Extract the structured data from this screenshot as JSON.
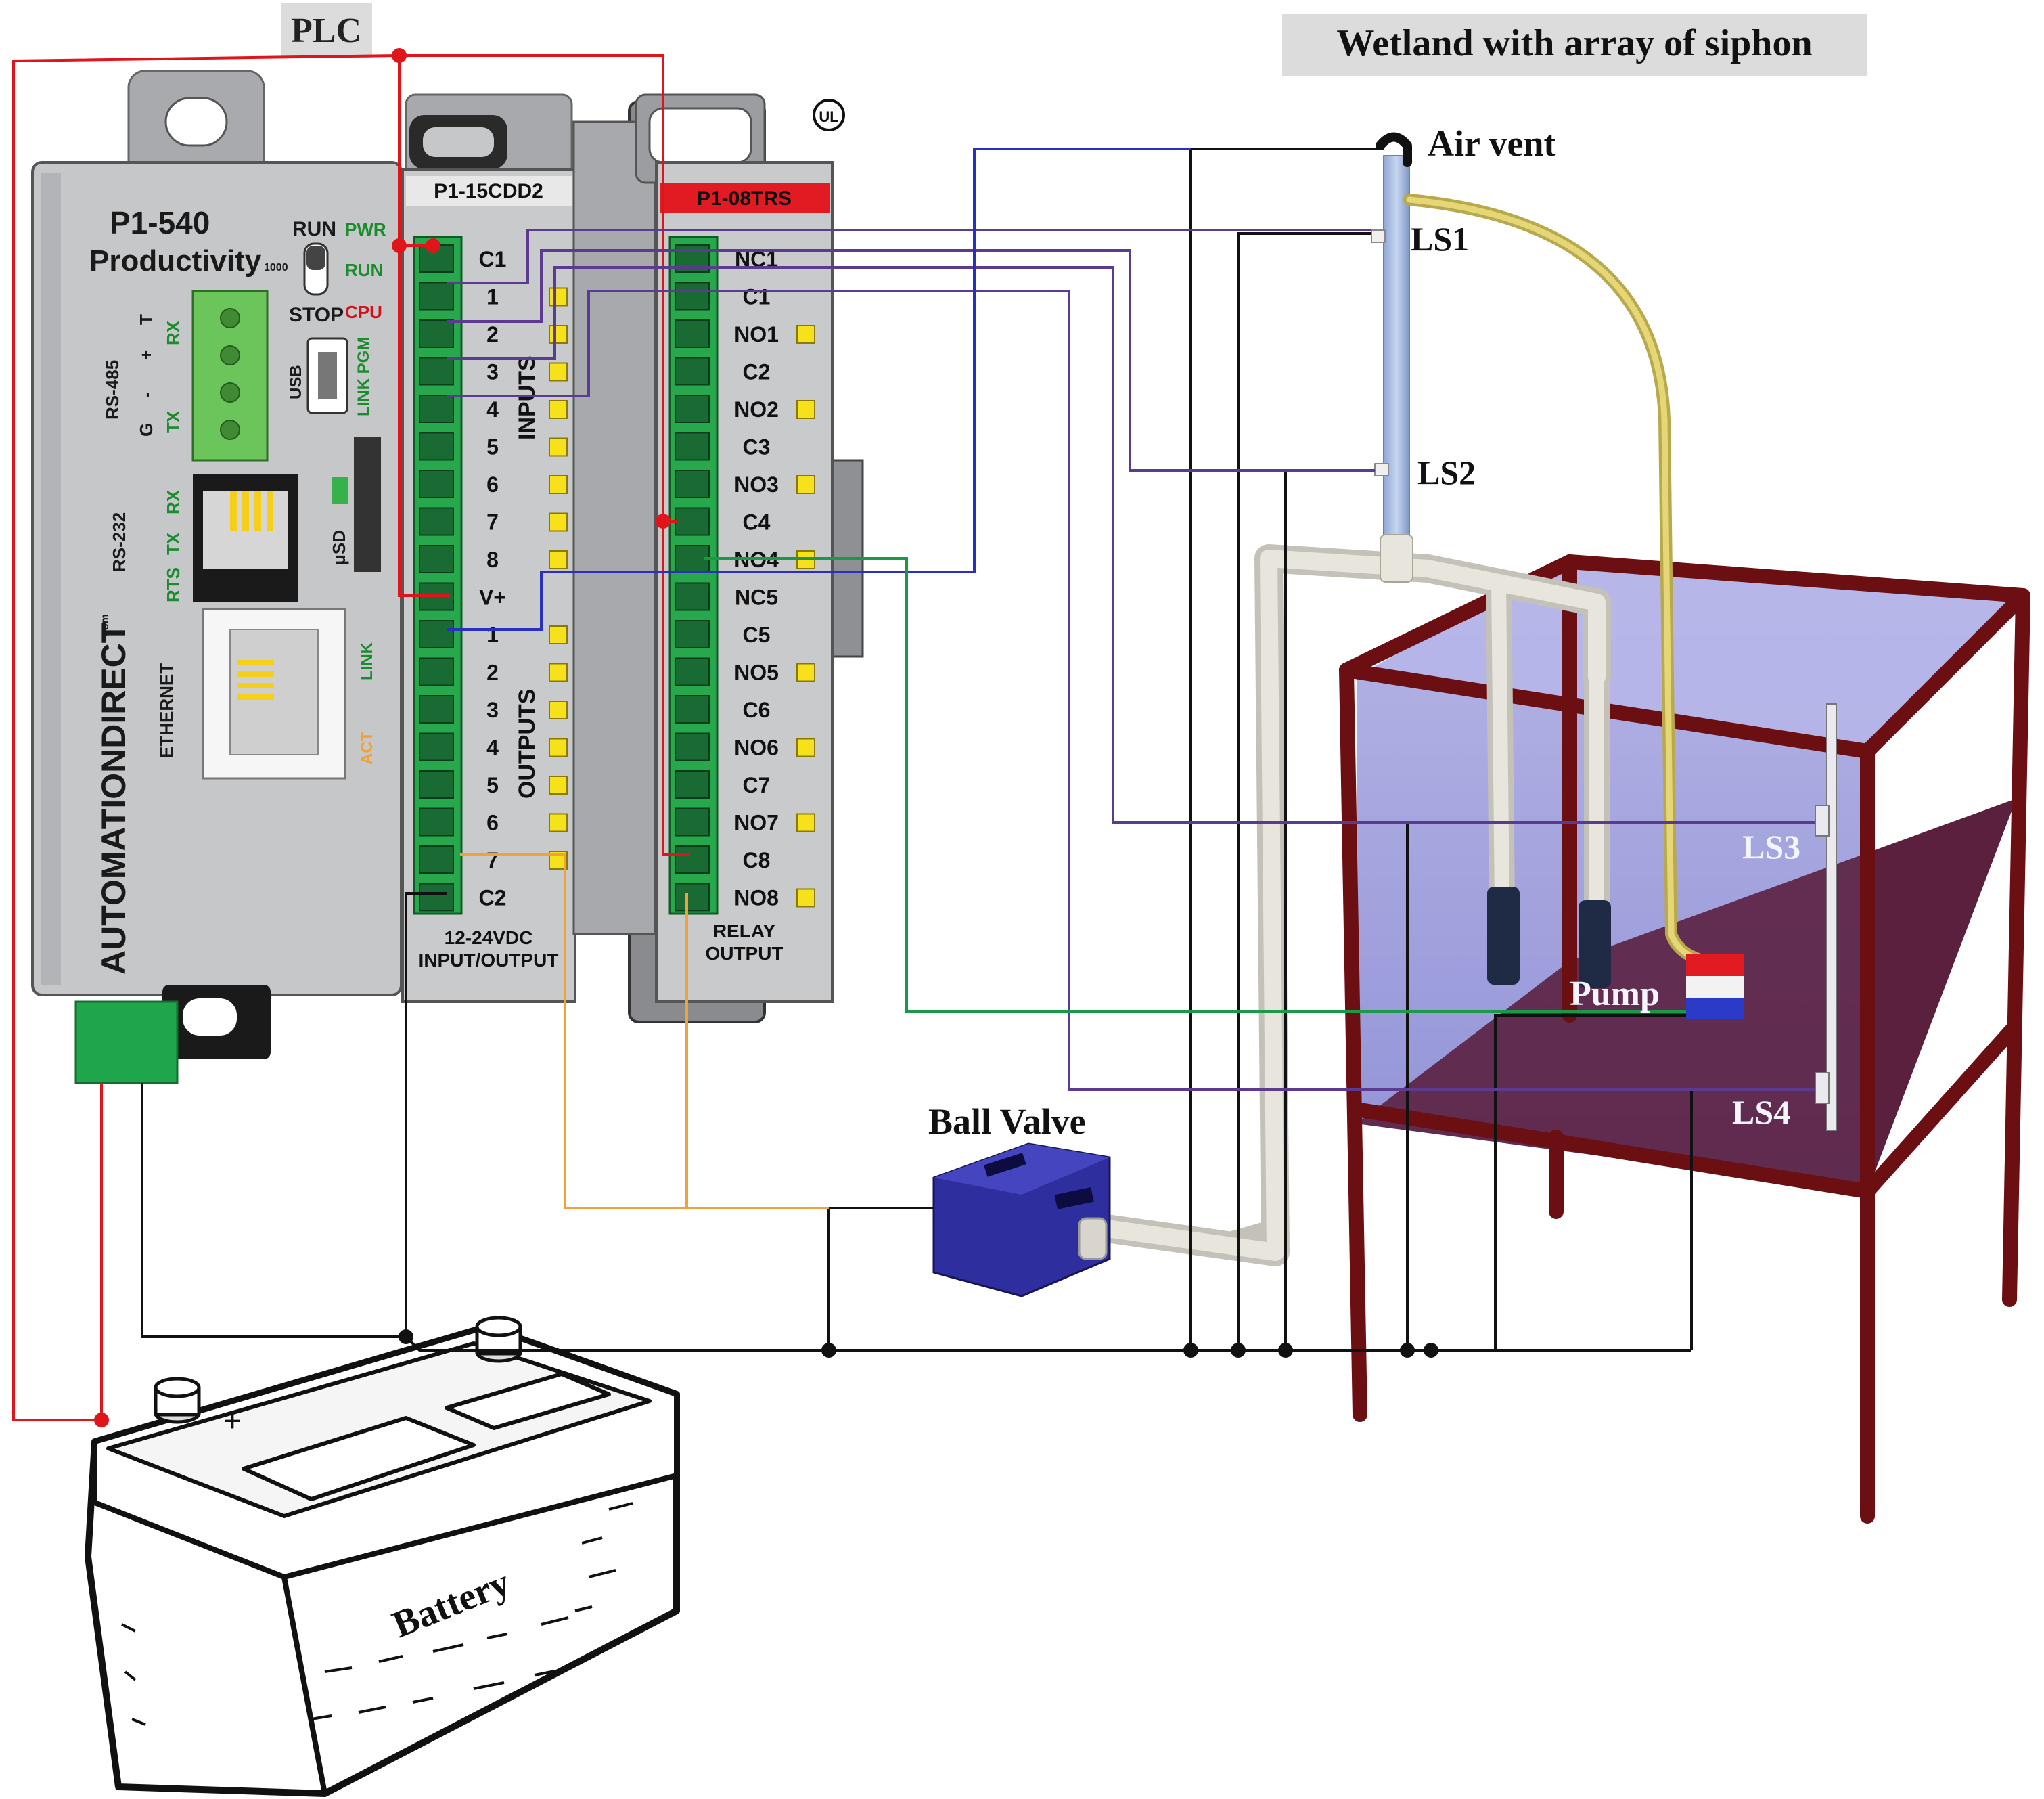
{
  "titles": {
    "plc": "PLC",
    "wetland": "Wetland with array of siphon"
  },
  "cpu": {
    "model": "P1-540",
    "brand": "Productivity",
    "brand_suffix": "1000",
    "maker": "AUTOMATIONDIRECT",
    "maker_suffix": "com",
    "run": "RUN",
    "stop": "STOP",
    "pwr": "PWR",
    "run_led": "RUN",
    "cpu_led": "CPU",
    "usb": "USB",
    "link_pgm": "LINK PGM",
    "rs485": "RS-485",
    "t_label": "T",
    "plus_label": "+",
    "minus_label": "-",
    "g_label": "G",
    "rx1": "RX",
    "tx1": "TX",
    "rs232": "RS-232",
    "rx2": "RX",
    "tx2": "TX",
    "rts": "RTS",
    "usd": "μSD",
    "ethernet": "ETHERNET",
    "link2": "LINK",
    "act": "ACT"
  },
  "io_module": {
    "model": "P1-15CDD2",
    "terminals": [
      "C1",
      "1",
      "2",
      "3",
      "4",
      "5",
      "6",
      "7",
      "8",
      "V+",
      "1",
      "2",
      "3",
      "4",
      "5",
      "6",
      "7",
      "C2"
    ],
    "inputs": "INPUTS",
    "outputs": "OUTPUTS",
    "footer1": "12-24VDC",
    "footer2": "INPUT/OUTPUT"
  },
  "relay_module": {
    "model": "P1-08TRS",
    "terminals": [
      "NC1",
      "C1",
      "NO1",
      "C2",
      "NO2",
      "C3",
      "NO3",
      "C4",
      "NO4",
      "NC5",
      "C5",
      "NO5",
      "C6",
      "NO6",
      "C7",
      "NO7",
      "C8",
      "NO8"
    ],
    "footer1": "RELAY",
    "footer2": "OUTPUT",
    "ul": "UL"
  },
  "labels": {
    "air_vent": "Air vent",
    "ls1": "LS1",
    "ls2": "LS2",
    "ls3": "LS3",
    "ls4": "LS4",
    "pump": "Pump",
    "ball_valve": "Ball Valve",
    "battery": "Battery",
    "battery_plus": "+"
  },
  "colors": {
    "red_wire": "#e0151b",
    "purple_wire": "#5b3a8f",
    "blue_wire": "#2b2ec2",
    "green_wire": "#1a9a46",
    "orange_wire": "#f0a23a",
    "black_wire": "#111111",
    "tank_frame": "#6b0f12",
    "tank_water": "#8f8fd6",
    "tank_bottom": "#5a1e3c",
    "pipe": "#d8d6cc",
    "tube": "#c9b85a",
    "valve": "#2e2e9e",
    "terminal_green": "#22a54a",
    "led_yellow": "#f7e11a",
    "plc_gray": "#c6c7c9",
    "relay_red": "#e21b23"
  }
}
